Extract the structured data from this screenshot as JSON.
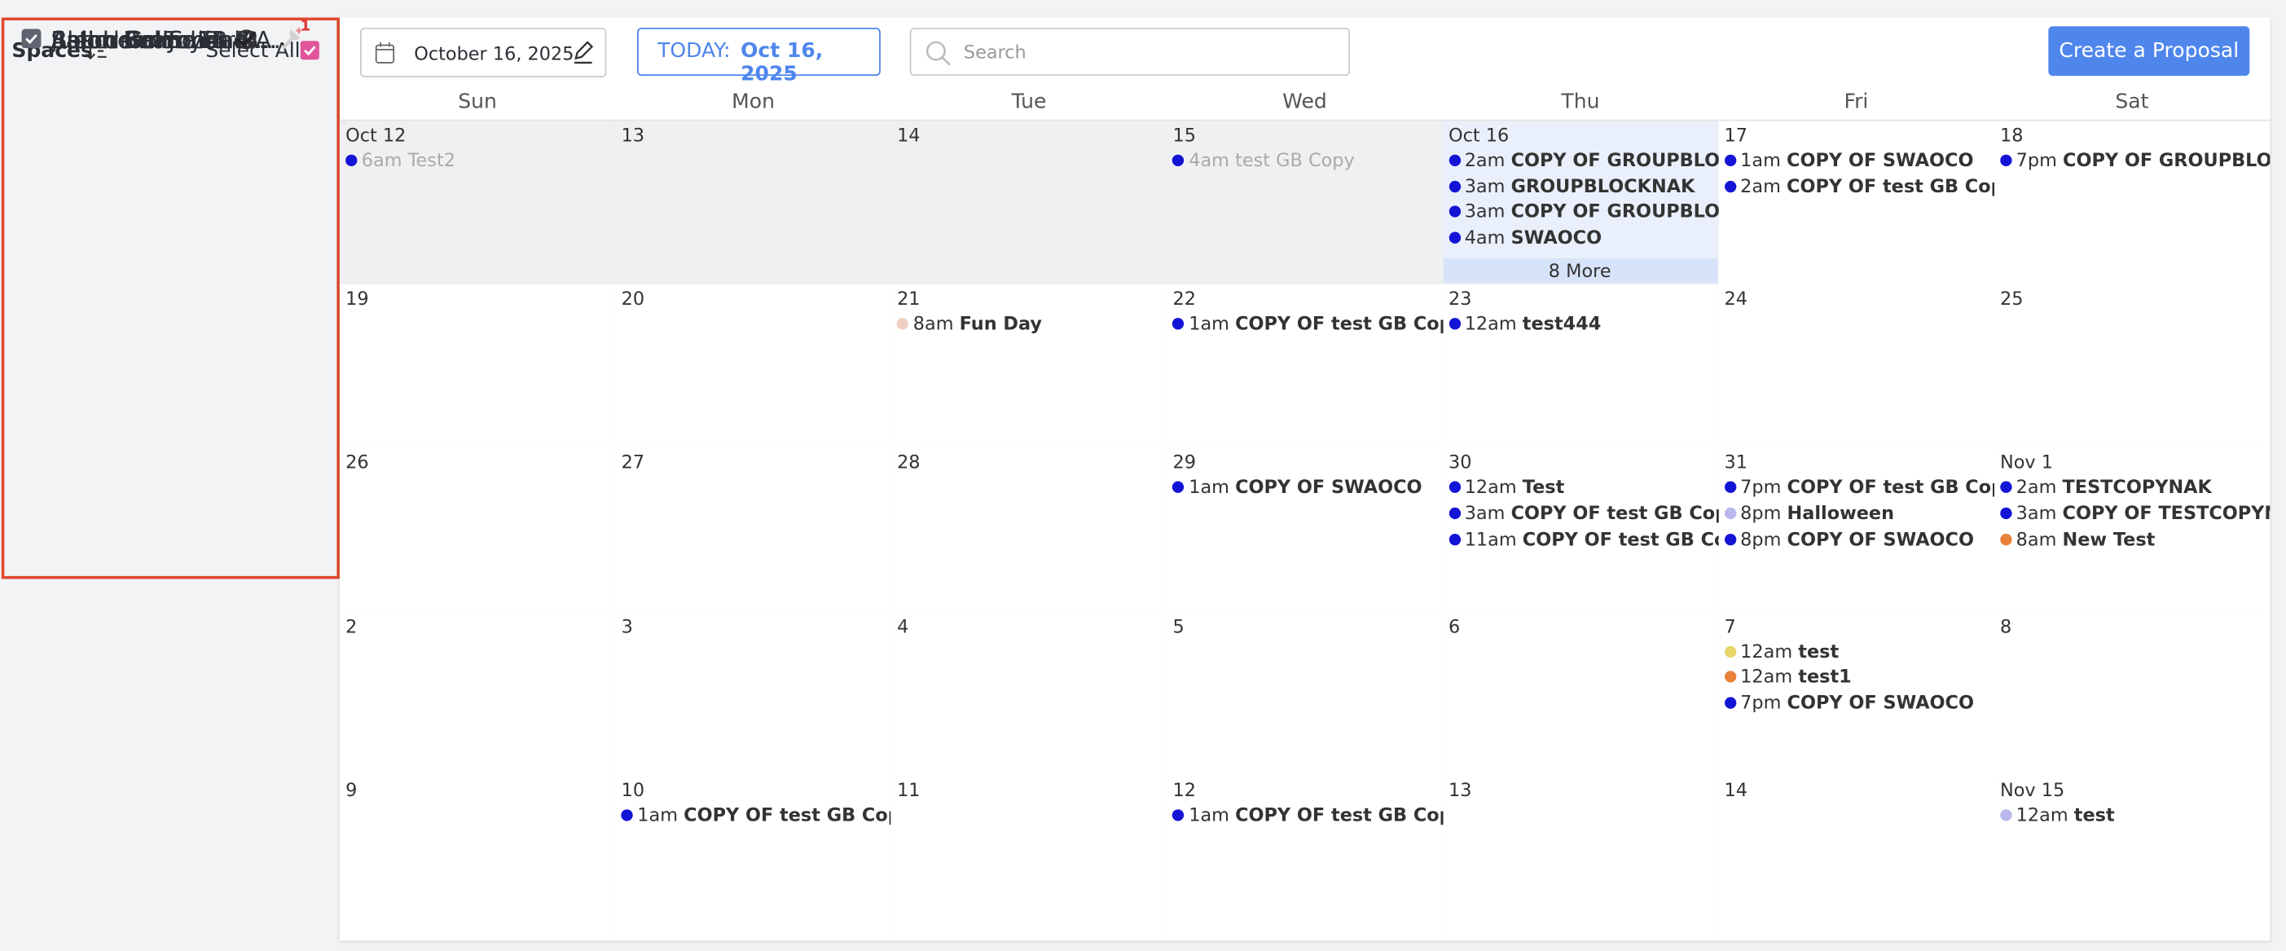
{
  "sidebar": {
    "title": "Spaces",
    "select_all": "Select All",
    "spaces": [
      {
        "name": "Aston Grand Ballr...",
        "color": "#1a1ad6"
      },
      {
        "name": "Aston Salon 1A",
        "color": "#b9b9f0"
      },
      {
        "name": "Aston Salon 1B",
        "color": "#8fd0cc",
        "badge": "1"
      },
      {
        "name": "Ballroom Foyer",
        "color": "#ecd65a"
      },
      {
        "name": "Blenheim Junior B...",
        "color": "#e8823a"
      },
      {
        "name": "Blenheim Salon 4A",
        "color": "#6b3a1e"
      },
      {
        "name": "Blenheim Salone ...",
        "color": "#f3d6c8"
      },
      {
        "name": "Boardroom",
        "color": "#2e7a3a"
      },
      {
        "name": "Junior Ballroom F...",
        "color": "#5f6470"
      },
      {
        "name": "Salon 3",
        "color": "#5f6470",
        "badge": "1"
      },
      {
        "name": "Salon 5",
        "color": "#5f6470"
      },
      {
        "name": "Salon 6",
        "color": "#5f6470"
      }
    ]
  },
  "toolbar": {
    "date": "October 16, 2025",
    "today_label": "TODAY:",
    "today_date": "Oct 16, 2025",
    "search_placeholder": "Search",
    "create_button": "Create a Proposal"
  },
  "calendar": {
    "weekdays": [
      "Sun",
      "Mon",
      "Tue",
      "Wed",
      "Thu",
      "Fri",
      "Sat"
    ],
    "weeks": [
      [
        {
          "day": "Oct 12",
          "events": [
            {
              "time": "6am",
              "title": "Test2",
              "color": "#1414d6"
            }
          ]
        },
        {
          "day": "13",
          "events": []
        },
        {
          "day": "14",
          "events": []
        },
        {
          "day": "15",
          "events": [
            {
              "time": "4am",
              "title": "test GB Copy",
              "color": "#1414d6"
            }
          ]
        },
        {
          "day": "Oct 16",
          "events": [
            {
              "time": "2am",
              "title": "COPY OF GROUPBLOCKN",
              "color": "#1414d6"
            },
            {
              "time": "3am",
              "title": "GROUPBLOCKNAK",
              "color": "#1414d6"
            },
            {
              "time": "3am",
              "title": "COPY OF GROUPBLOCKN",
              "color": "#1414d6"
            },
            {
              "time": "4am",
              "title": "SWAOCO",
              "color": "#1414d6"
            }
          ],
          "more": "8 More"
        },
        {
          "day": "17",
          "events": [
            {
              "time": "1am",
              "title": "COPY OF SWAOCO",
              "color": "#1414d6"
            },
            {
              "time": "2am",
              "title": "COPY OF test GB Copy",
              "color": "#1414d6"
            }
          ]
        },
        {
          "day": "18",
          "events": [
            {
              "time": "7pm",
              "title": "COPY OF GROUPBLOCKN",
              "color": "#1414d6"
            }
          ]
        }
      ],
      [
        {
          "day": "19",
          "events": []
        },
        {
          "day": "20",
          "events": []
        },
        {
          "day": "21",
          "events": [
            {
              "time": "8am",
              "title": "Fun Day",
              "color": "#f0cfc0"
            }
          ]
        },
        {
          "day": "22",
          "events": [
            {
              "time": "1am",
              "title": "COPY OF test GB Copy",
              "color": "#1414d6"
            }
          ]
        },
        {
          "day": "23",
          "events": [
            {
              "time": "12am",
              "title": "test444",
              "color": "#1414d6"
            }
          ]
        },
        {
          "day": "24",
          "events": []
        },
        {
          "day": "25",
          "events": []
        }
      ],
      [
        {
          "day": "26",
          "events": []
        },
        {
          "day": "27",
          "events": []
        },
        {
          "day": "28",
          "events": []
        },
        {
          "day": "29",
          "events": [
            {
              "time": "1am",
              "title": "COPY OF SWAOCO",
              "color": "#1414d6"
            }
          ]
        },
        {
          "day": "30",
          "events": [
            {
              "time": "12am",
              "title": "Test",
              "color": "#1414d6"
            },
            {
              "time": "3am",
              "title": "COPY OF test GB Copy",
              "color": "#1414d6"
            },
            {
              "time": "11am",
              "title": "COPY OF test GB Copy",
              "color": "#1414d6"
            }
          ]
        },
        {
          "day": "31",
          "events": [
            {
              "time": "7pm",
              "title": "COPY OF test GB Copy",
              "color": "#1414d6"
            },
            {
              "time": "8pm",
              "title": "Halloween",
              "color": "#b8b8ef"
            },
            {
              "time": "8pm",
              "title": "COPY OF SWAOCO",
              "color": "#1414d6"
            }
          ]
        },
        {
          "day": "Nov 1",
          "events": [
            {
              "time": "2am",
              "title": "TESTCOPYNAK",
              "color": "#1414d6"
            },
            {
              "time": "3am",
              "title": "COPY OF TESTCOPYNAK",
              "color": "#1414d6"
            },
            {
              "time": "8am",
              "title": "New Test",
              "color": "#e8823a"
            }
          ]
        }
      ],
      [
        {
          "day": "2",
          "events": []
        },
        {
          "day": "3",
          "events": []
        },
        {
          "day": "4",
          "events": []
        },
        {
          "day": "5",
          "events": []
        },
        {
          "day": "6",
          "events": []
        },
        {
          "day": "7",
          "events": [
            {
              "time": "12am",
              "title": "test",
              "color": "#e6d66a"
            },
            {
              "time": "12am",
              "title": "test1",
              "color": "#e8823a"
            },
            {
              "time": "7pm",
              "title": "COPY OF SWAOCO",
              "color": "#1414d6"
            }
          ]
        },
        {
          "day": "8",
          "events": []
        }
      ],
      [
        {
          "day": "9",
          "events": []
        },
        {
          "day": "10",
          "events": [
            {
              "time": "1am",
              "title": "COPY OF test GB Copy",
              "color": "#1414d6"
            }
          ]
        },
        {
          "day": "11",
          "events": []
        },
        {
          "day": "12",
          "events": [
            {
              "time": "1am",
              "title": "COPY OF test GB Copy",
              "color": "#1414d6"
            }
          ]
        },
        {
          "day": "13",
          "events": []
        },
        {
          "day": "14",
          "events": []
        },
        {
          "day": "Nov 15",
          "events": [
            {
              "time": "12am",
              "title": "test",
              "color": "#b8b8ef"
            }
          ]
        }
      ]
    ]
  }
}
